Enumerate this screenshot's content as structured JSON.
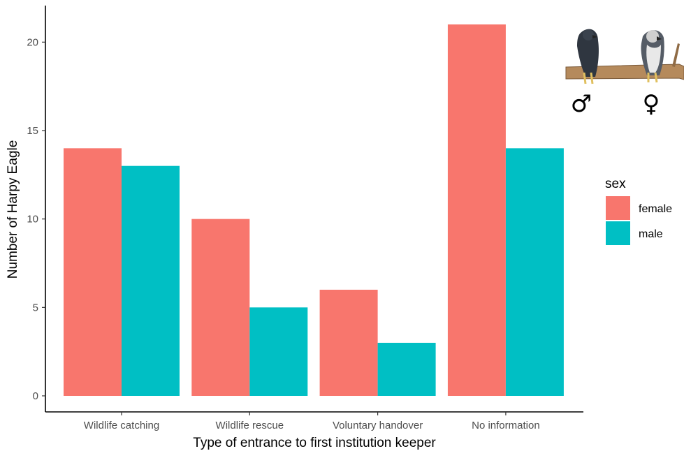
{
  "chart_data": {
    "type": "bar",
    "categories": [
      "Wildlife catching",
      "Wildlife rescue",
      "Voluntary handover",
      "No information"
    ],
    "series": [
      {
        "name": "female",
        "values": [
          14,
          10,
          6,
          21
        ],
        "color": "#F8766D"
      },
      {
        "name": "male",
        "values": [
          13,
          5,
          3,
          14
        ],
        "color": "#00BFC4"
      }
    ],
    "xlabel": "Type of entrance to first institution keeper",
    "ylabel": "Number of Harpy Eagle",
    "ylim": [
      0,
      21
    ],
    "yticks": [
      0,
      5,
      10,
      15,
      20
    ],
    "grid": false,
    "legend": {
      "title": "sex",
      "position": "right"
    }
  },
  "inset": {
    "male_symbol": "♂",
    "female_symbol": "♀"
  }
}
